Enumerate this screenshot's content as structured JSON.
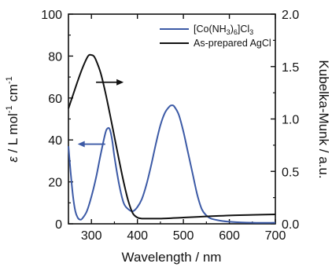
{
  "chart_data": {
    "type": "line",
    "xlabel": "Wavelength / nm",
    "ylabel_left": "ε / L mol-1 cm-1",
    "ylabel_left_parts": {
      "symbol": "ε",
      "unit": " / L mol",
      "exp1": "-1",
      "unit2": " cm",
      "exp2": "-1"
    },
    "ylabel_right": "Kubelka-Munk / a.u.",
    "xlim": [
      250,
      700
    ],
    "ylim_left": [
      0,
      100
    ],
    "ylim_right": [
      0,
      2.0
    ],
    "xticks": [
      300,
      400,
      500,
      600,
      700
    ],
    "xtick_labels": [
      "300",
      "400",
      "500",
      "600",
      "700"
    ],
    "yticks_left": [
      0,
      20,
      40,
      60,
      80,
      100
    ],
    "ytick_labels_left": [
      "0",
      "20",
      "40",
      "60",
      "80",
      "100"
    ],
    "yticks_right": [
      0,
      0.5,
      1.0,
      1.5,
      2.0
    ],
    "ytick_labels_right": [
      "0.0",
      "0.5",
      "1.0",
      "1.5",
      "2.0"
    ],
    "legend_position": "top-right",
    "series": [
      {
        "name": "[Co(NH3)6]Cl3",
        "name_parts": {
          "a": "[Co(NH",
          "sub1": "3",
          "b": ")",
          "sub2": "6",
          "c": "]Cl",
          "sub3": "3"
        },
        "axis": "left",
        "color": "#3c5aa6",
        "x": [
          250,
          255,
          260,
          265,
          270,
          275,
          280,
          290,
          300,
          310,
          320,
          330,
          335,
          340,
          345,
          350,
          360,
          370,
          380,
          390,
          400,
          410,
          420,
          430,
          440,
          450,
          460,
          470,
          475,
          480,
          490,
          500,
          510,
          520,
          530,
          540,
          550,
          560,
          580,
          600,
          650,
          700
        ],
        "y": [
          37,
          24,
          13,
          6,
          3,
          2,
          2.5,
          6,
          13,
          22,
          33,
          43,
          45.5,
          45,
          40,
          32,
          19,
          10,
          7,
          6,
          8,
          12,
          19,
          28,
          38,
          47,
          53,
          56,
          56.5,
          56,
          52,
          44,
          34,
          24,
          14,
          7,
          4,
          2.5,
          1.5,
          1,
          0.5,
          0.5
        ]
      },
      {
        "name": "As-prepared AgCl",
        "axis": "right",
        "color": "#111111",
        "x": [
          250,
          260,
          270,
          280,
          290,
          295,
          300,
          305,
          310,
          320,
          330,
          340,
          350,
          360,
          370,
          380,
          390,
          400,
          410,
          420,
          450,
          500,
          550,
          600,
          650,
          700
        ],
        "y": [
          1.1,
          1.23,
          1.36,
          1.48,
          1.58,
          1.61,
          1.61,
          1.6,
          1.56,
          1.44,
          1.26,
          1.05,
          0.83,
          0.61,
          0.4,
          0.22,
          0.1,
          0.06,
          0.05,
          0.05,
          0.05,
          0.06,
          0.07,
          0.08,
          0.085,
          0.09
        ]
      }
    ],
    "annotations": [
      {
        "type": "arrow",
        "direction": "right",
        "target_axis": "right",
        "from_x": 310,
        "to_x": 370,
        "at_y_right": 1.35
      },
      {
        "type": "arrow",
        "direction": "left",
        "target_axis": "left",
        "from_x": 330,
        "to_x": 270,
        "at_y_left": 38
      }
    ]
  }
}
